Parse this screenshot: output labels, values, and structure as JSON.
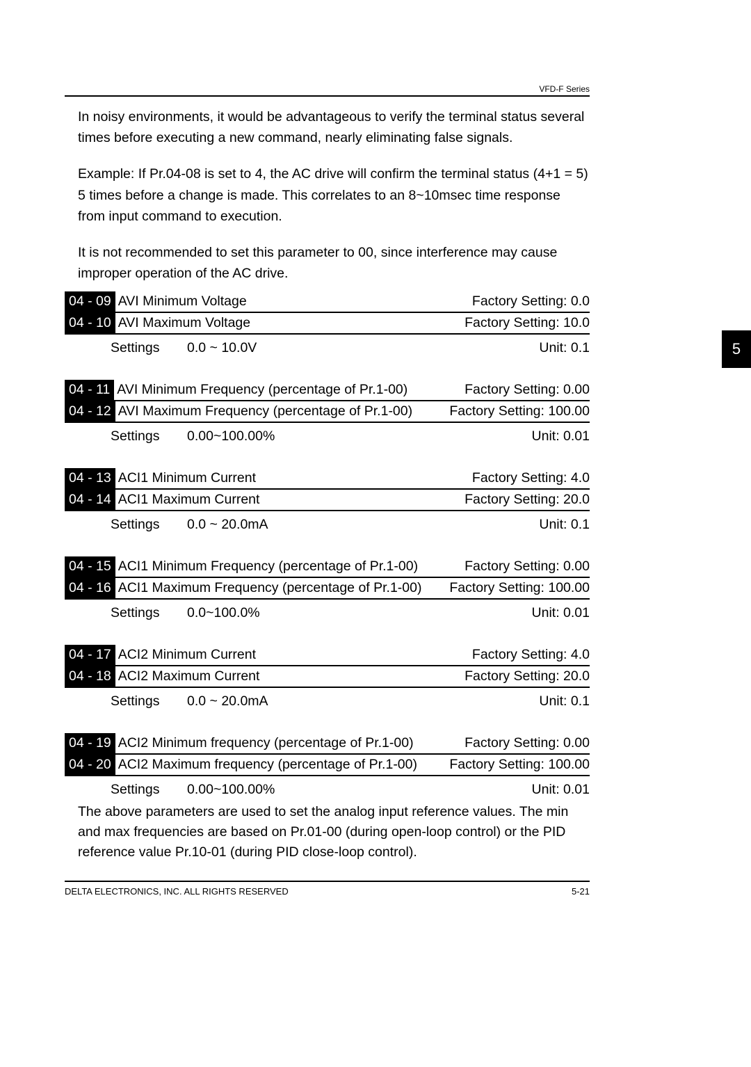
{
  "header": {
    "series": "VFD-F Series"
  },
  "intro": {
    "p1": "In noisy environments, it would be advantageous to verify the terminal status several times before executing a new command, nearly eliminating false signals.",
    "p2": "Example: If Pr.04-08 is set to 4, the AC drive will confirm the terminal status (4+1 = 5) 5 times before a change is made. This correlates to an 8~10msec time response from input command to execution.",
    "p3": "It is not recommended to set this parameter to 00, since interference may cause improper operation of the AC drive."
  },
  "labels": {
    "settings": "Settings",
    "unit_prefix": "Unit: ",
    "fs_prefix": "Factory Setting:  "
  },
  "groups": [
    {
      "rows": [
        {
          "code": "04 - 09",
          "name": "AVI Minimum Voltage",
          "fs": "0.0"
        },
        {
          "code": "04 - 10",
          "name": "AVI Maximum Voltage",
          "fs": "10.0"
        }
      ],
      "settings": {
        "range": "0.0 ~ 10.0V",
        "unit": "0.1"
      }
    },
    {
      "rows": [
        {
          "code": "04 - 11",
          "name": "AVI Minimum Frequency  (percentage of Pr.1-00)",
          "fs": "0.00"
        },
        {
          "code": "04 - 12",
          "name": "AVI Maximum Frequency  (percentage of Pr.1-00)",
          "fs": "100.00"
        }
      ],
      "settings": {
        "range": "0.00~100.00%",
        "unit": "0.01"
      }
    },
    {
      "rows": [
        {
          "code": "04 - 13",
          "name": "ACI1 Minimum Current",
          "fs": "4.0"
        },
        {
          "code": "04 - 14",
          "name": "ACI1 Maximum Current",
          "fs": "20.0"
        }
      ],
      "settings": {
        "range": "0.0 ~ 20.0mA",
        "unit": "0.1"
      }
    },
    {
      "rows": [
        {
          "code": "04 - 15",
          "name": "ACI1 Minimum Frequency  (percentage of Pr.1-00)",
          "fs": "0.00"
        },
        {
          "code": "04 - 16",
          "name": "ACI1 Maximum Frequency (percentage of Pr.1-00)",
          "fs": "100.00"
        }
      ],
      "settings": {
        "range": "0.0~100.0%",
        "unit": "0.01"
      }
    },
    {
      "rows": [
        {
          "code": "04 - 17",
          "name": "ACI2 Minimum Current",
          "fs": "4.0"
        },
        {
          "code": "04 - 18",
          "name": "ACI2 Maximum Current",
          "fs": "20.0"
        }
      ],
      "settings": {
        "range": "0.0 ~ 20.0mA",
        "unit": "0.1"
      }
    },
    {
      "rows": [
        {
          "code": "04 - 19",
          "name": "ACI2 Minimum frequency  (percentage of Pr.1-00)",
          "fs": "0.00"
        },
        {
          "code": "04 - 20",
          "name": "ACI2 Maximum frequency (percentage of Pr.1-00)",
          "fs": "100.00"
        }
      ],
      "settings": {
        "range": "0.00~100.00%",
        "unit": "0.01"
      },
      "tight": true
    }
  ],
  "after": "The above parameters are used to set the analog input reference values.  The min and max frequencies are based on Pr.01-00 (during open-loop control) or the PID reference value Pr.10-01 (during PID close-loop control).",
  "footer": {
    "left": "DELTA ELECTRONICS, INC. ALL RIGHTS RESERVED",
    "page": "5-21"
  },
  "sidetab": "5"
}
